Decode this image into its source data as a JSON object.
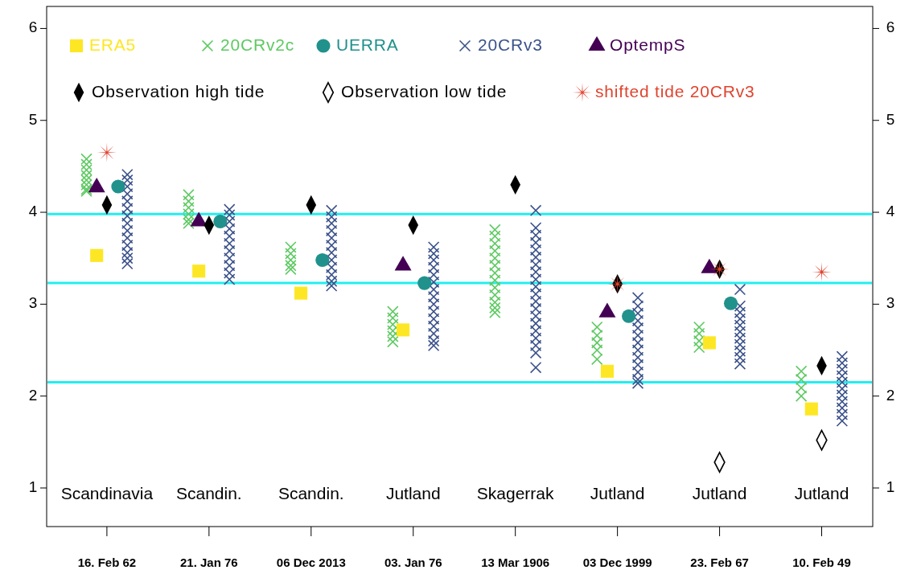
{
  "chart_data": {
    "type": "scatter",
    "categories": [
      "16. Feb 62",
      "21. Jan 76",
      "06 Dec 2013",
      "03. Jan 76",
      "13 Mar 1906",
      "03 Dec 1999",
      "23. Feb 67",
      "10. Feb 49"
    ],
    "ylim": [
      0.58,
      6.24
    ],
    "yticks": [
      1,
      2,
      3,
      4,
      5,
      6
    ],
    "y2lim": [
      0.58,
      6.24
    ],
    "y2ticks": [
      1,
      2,
      3,
      4,
      5,
      6
    ],
    "grid": false,
    "legend": "top",
    "ref_lines": [
      {
        "axis": "y",
        "value": 3.98,
        "color": "#22eef0"
      },
      {
        "axis": "y",
        "value": 3.23,
        "color": "#22eef0"
      },
      {
        "axis": "y",
        "value": 2.15,
        "color": "#22eef0"
      }
    ],
    "annotations": [
      "Scandinavia",
      "Scandin.",
      "Scandin.",
      "Jutland",
      "Skagerrak",
      "Jutland",
      "Jutland",
      "Jutland"
    ],
    "series": [
      {
        "name": "20CRv2c",
        "color": "#5ec962",
        "marker": "cross",
        "x": [
          "16. Feb 62",
          "16. Feb 62",
          "16. Feb 62",
          "16. Feb 62",
          "16. Feb 62",
          "16. Feb 62",
          "16. Feb 62",
          "16. Feb 62",
          "21. Jan 76",
          "21. Jan 76",
          "21. Jan 76",
          "21. Jan 76",
          "21. Jan 76",
          "21. Jan 76",
          "06 Dec 2013",
          "06 Dec 2013",
          "06 Dec 2013",
          "06 Dec 2013",
          "06 Dec 2013",
          "03. Jan 76",
          "03. Jan 76",
          "03. Jan 76",
          "03. Jan 76",
          "03. Jan 76",
          "03. Jan 76",
          "13 Mar 1906",
          "13 Mar 1906",
          "13 Mar 1906",
          "13 Mar 1906",
          "13 Mar 1906",
          "13 Mar 1906",
          "13 Mar 1906",
          "13 Mar 1906",
          "13 Mar 1906",
          "13 Mar 1906",
          "13 Mar 1906",
          "13 Mar 1906",
          "13 Mar 1906",
          "03 Dec 1999",
          "03 Dec 1999",
          "03 Dec 1999",
          "03 Dec 1999",
          "03 Dec 1999",
          "23. Feb 67",
          "23. Feb 67",
          "23. Feb 67",
          "23. Feb 67",
          "10. Feb 49",
          "10. Feb 49",
          "10. Feb 49",
          "10. Feb 49"
        ],
        "values": [
          4.58,
          4.52,
          4.46,
          4.4,
          4.35,
          4.3,
          4.25,
          4.23,
          4.19,
          4.12,
          4.05,
          3.98,
          3.92,
          3.88,
          3.62,
          3.55,
          3.48,
          3.42,
          3.38,
          2.92,
          2.85,
          2.78,
          2.71,
          2.65,
          2.59,
          3.81,
          3.74,
          3.66,
          3.58,
          3.5,
          3.42,
          3.34,
          3.26,
          3.18,
          3.1,
          3.02,
          2.96,
          2.91,
          2.75,
          2.66,
          2.58,
          2.5,
          2.4,
          2.75,
          2.68,
          2.6,
          2.53,
          2.27,
          2.18,
          2.09,
          2.0
        ]
      },
      {
        "name": "20CRv3",
        "color": "#3b528b",
        "marker": "cross",
        "x": [
          "16. Feb 62",
          "16. Feb 62",
          "16. Feb 62",
          "16. Feb 62",
          "16. Feb 62",
          "16. Feb 62",
          "16. Feb 62",
          "16. Feb 62",
          "16. Feb 62",
          "16. Feb 62",
          "16. Feb 62",
          "16. Feb 62",
          "16. Feb 62",
          "16. Feb 62",
          "21. Jan 76",
          "21. Jan 76",
          "21. Jan 76",
          "21. Jan 76",
          "21. Jan 76",
          "21. Jan 76",
          "21. Jan 76",
          "21. Jan 76",
          "21. Jan 76",
          "21. Jan 76",
          "21. Jan 76",
          "06 Dec 2013",
          "06 Dec 2013",
          "06 Dec 2013",
          "06 Dec 2013",
          "06 Dec 2013",
          "06 Dec 2013",
          "06 Dec 2013",
          "06 Dec 2013",
          "06 Dec 2013",
          "06 Dec 2013",
          "06 Dec 2013",
          "06 Dec 2013",
          "03. Jan 76",
          "03. Jan 76",
          "03. Jan 76",
          "03. Jan 76",
          "03. Jan 76",
          "03. Jan 76",
          "03. Jan 76",
          "03. Jan 76",
          "03. Jan 76",
          "03. Jan 76",
          "03. Jan 76",
          "03. Jan 76",
          "03. Jan 76",
          "03. Jan 76",
          "03. Jan 76",
          "13 Mar 1906",
          "13 Mar 1906",
          "13 Mar 1906",
          "13 Mar 1906",
          "13 Mar 1906",
          "13 Mar 1906",
          "13 Mar 1906",
          "13 Mar 1906",
          "13 Mar 1906",
          "13 Mar 1906",
          "13 Mar 1906",
          "13 Mar 1906",
          "13 Mar 1906",
          "13 Mar 1906",
          "13 Mar 1906",
          "13 Mar 1906",
          "13 Mar 1906",
          "13 Mar 1906",
          "13 Mar 1906",
          "13 Mar 1906",
          "03 Dec 1999",
          "03 Dec 1999",
          "03 Dec 1999",
          "03 Dec 1999",
          "03 Dec 1999",
          "03 Dec 1999",
          "03 Dec 1999",
          "03 Dec 1999",
          "03 Dec 1999",
          "03 Dec 1999",
          "03 Dec 1999",
          "03 Dec 1999",
          "03 Dec 1999",
          "23. Feb 67",
          "23. Feb 67",
          "23. Feb 67",
          "23. Feb 67",
          "23. Feb 67",
          "23. Feb 67",
          "23. Feb 67",
          "23. Feb 67",
          "23. Feb 67",
          "23. Feb 67",
          "23. Feb 67",
          "10. Feb 49",
          "10. Feb 49",
          "10. Feb 49",
          "10. Feb 49",
          "10. Feb 49",
          "10. Feb 49",
          "10. Feb 49",
          "10. Feb 49",
          "10. Feb 49",
          "10. Feb 49",
          "10. Feb 49"
        ],
        "values": [
          4.41,
          4.35,
          4.28,
          4.2,
          4.12,
          4.04,
          3.96,
          3.88,
          3.8,
          3.72,
          3.64,
          3.56,
          3.5,
          3.44,
          4.03,
          3.97,
          3.9,
          3.82,
          3.74,
          3.66,
          3.58,
          3.5,
          3.42,
          3.34,
          3.27,
          4.02,
          3.95,
          3.88,
          3.8,
          3.72,
          3.64,
          3.56,
          3.48,
          3.4,
          3.32,
          3.25,
          3.2,
          3.62,
          3.55,
          3.48,
          3.4,
          3.32,
          3.24,
          3.16,
          3.08,
          3.0,
          2.92,
          2.84,
          2.76,
          2.68,
          2.6,
          2.55,
          4.02,
          3.83,
          3.75,
          3.67,
          3.59,
          3.51,
          3.43,
          3.35,
          3.27,
          3.19,
          3.11,
          3.03,
          2.95,
          2.87,
          2.79,
          2.71,
          2.63,
          2.55,
          2.47,
          2.31,
          3.07,
          2.98,
          2.9,
          2.82,
          2.74,
          2.66,
          2.58,
          2.5,
          2.42,
          2.34,
          2.26,
          2.18,
          2.14,
          3.16,
          2.98,
          2.91,
          2.84,
          2.77,
          2.7,
          2.63,
          2.56,
          2.49,
          2.42,
          2.35,
          2.43,
          2.36,
          2.29,
          2.22,
          2.15,
          2.08,
          2.01,
          1.94,
          1.87,
          1.8,
          1.73
        ]
      },
      {
        "name": "ERA5",
        "color": "#fde725",
        "marker": "square",
        "x": [
          "16. Feb 62",
          "21. Jan 76",
          "06 Dec 2013",
          "03. Jan 76",
          "03 Dec 1999",
          "23. Feb 67",
          "10. Feb 49"
        ],
        "values": [
          3.53,
          3.36,
          3.12,
          2.72,
          2.27,
          2.58,
          1.86
        ]
      },
      {
        "name": "UERRA",
        "color": "#21918c",
        "marker": "circle",
        "x": [
          "16. Feb 62",
          "21. Jan 76",
          "06 Dec 2013",
          "03. Jan 76",
          "03 Dec 1999",
          "23. Feb 67"
        ],
        "values": [
          4.28,
          3.9,
          3.48,
          3.23,
          2.87,
          3.01
        ]
      },
      {
        "name": "OptempS",
        "color": "#440154",
        "marker": "triangle",
        "x": [
          "16. Feb 62",
          "21. Jan 76",
          "03. Jan 76",
          "03 Dec 1999",
          "23. Feb 67"
        ],
        "values": [
          4.27,
          3.9,
          3.42,
          2.91,
          3.39
        ]
      },
      {
        "name": "Observation high tide",
        "color": "#000000",
        "marker": "diamond",
        "x": [
          "16. Feb 62",
          "21. Jan 76",
          "06 Dec 2013",
          "03. Jan 76",
          "13 Mar 1906",
          "03 Dec 1999",
          "23. Feb 67",
          "10. Feb 49"
        ],
        "values": [
          4.08,
          3.86,
          4.08,
          3.86,
          4.3,
          3.22,
          3.38,
          2.33
        ]
      },
      {
        "name": "Observation low tide",
        "color": "#000000",
        "marker": "diamond",
        "x": [
          "23. Feb 67",
          "10. Feb 49"
        ],
        "values": [
          1.28,
          1.52
        ]
      },
      {
        "name": "shifted tide 20CRv3",
        "color": "#e0442f",
        "marker": "star",
        "x": [
          "16. Feb 62",
          "03 Dec 1999",
          "23. Feb 67",
          "10. Feb 49"
        ],
        "values": [
          4.65,
          3.22,
          3.38,
          3.35
        ]
      }
    ]
  }
}
